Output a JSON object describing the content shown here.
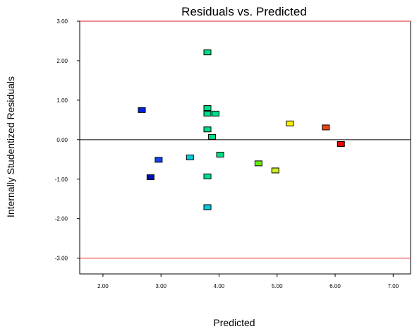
{
  "chart_data": {
    "type": "scatter",
    "title": "Residuals vs. Predicted",
    "xlabel": "Predicted",
    "ylabel": "Internally Studentized Residuals",
    "xlim": [
      1.6,
      7.3
    ],
    "ylim": [
      -3.4,
      3.0
    ],
    "xticks": [
      "2.00",
      "3.00",
      "4.00",
      "5.00",
      "6.00",
      "7.00"
    ],
    "yticks": [
      "3.00",
      "2.00",
      "1.00",
      "0.00",
      "-1.00",
      "-2.00",
      "-3.00"
    ],
    "reference_lines": [
      {
        "y": 3.0,
        "color": "#e02020"
      },
      {
        "y": 0.0,
        "color": "#000000"
      },
      {
        "y": -3.0,
        "color": "#e02020"
      }
    ],
    "grid": false,
    "points": [
      {
        "x": 2.67,
        "y": 0.75,
        "color": "#0022dd"
      },
      {
        "x": 2.82,
        "y": -0.95,
        "color": "#0010bb"
      },
      {
        "x": 2.96,
        "y": -0.51,
        "color": "#1144ee"
      },
      {
        "x": 3.5,
        "y": -0.45,
        "color": "#00ccdd"
      },
      {
        "x": 3.8,
        "y": 2.21,
        "color": "#00dd88"
      },
      {
        "x": 3.8,
        "y": 0.8,
        "color": "#00dd88"
      },
      {
        "x": 3.8,
        "y": 0.66,
        "color": "#00dd88"
      },
      {
        "x": 3.94,
        "y": 0.66,
        "color": "#00dd88"
      },
      {
        "x": 3.8,
        "y": 0.26,
        "color": "#00dd88"
      },
      {
        "x": 3.88,
        "y": 0.07,
        "color": "#00dd88"
      },
      {
        "x": 4.02,
        "y": -0.38,
        "color": "#00dd88"
      },
      {
        "x": 3.8,
        "y": -0.93,
        "color": "#00dd99"
      },
      {
        "x": 3.8,
        "y": -1.71,
        "color": "#00ccdd"
      },
      {
        "x": 4.68,
        "y": -0.6,
        "color": "#66ee00"
      },
      {
        "x": 4.97,
        "y": -0.78,
        "color": "#ccee22"
      },
      {
        "x": 5.22,
        "y": 0.41,
        "color": "#ffee00"
      },
      {
        "x": 5.84,
        "y": 0.31,
        "color": "#ee4411"
      },
      {
        "x": 6.1,
        "y": -0.11,
        "color": "#ee0000"
      }
    ]
  }
}
